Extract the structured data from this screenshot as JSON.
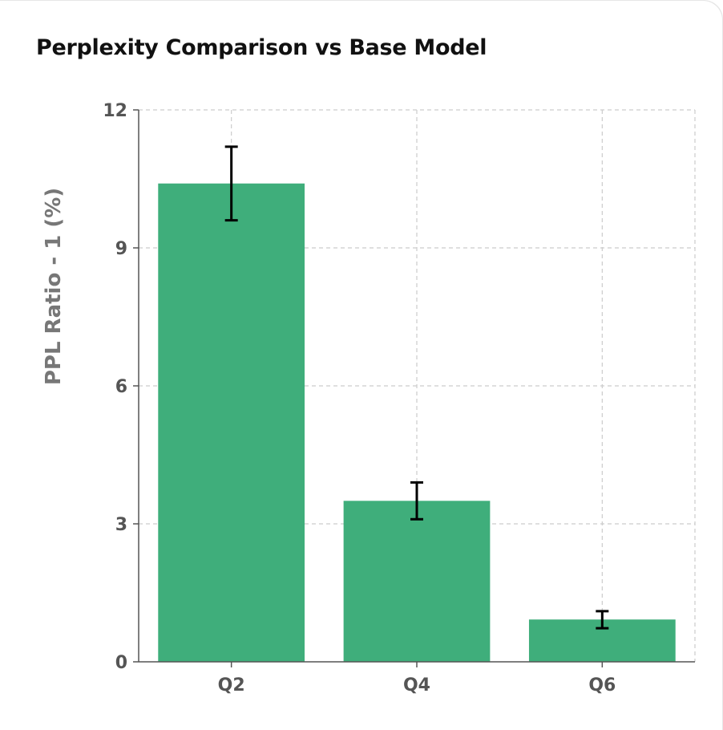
{
  "chart_data": {
    "type": "bar",
    "title": "Perplexity Comparison vs Base Model",
    "xlabel": "",
    "ylabel": "PPL Ratio - 1 (%)",
    "categories": [
      "Q2",
      "Q4",
      "Q6"
    ],
    "values": [
      10.4,
      3.5,
      0.92
    ],
    "error_low": [
      9.6,
      3.1,
      0.73
    ],
    "error_high": [
      11.2,
      3.9,
      1.1
    ],
    "ylim": [
      0,
      12
    ],
    "yticks": [
      0,
      3,
      6,
      9,
      12
    ],
    "grid": true,
    "bar_color": "#3fae7b",
    "error_color": "#000000"
  }
}
